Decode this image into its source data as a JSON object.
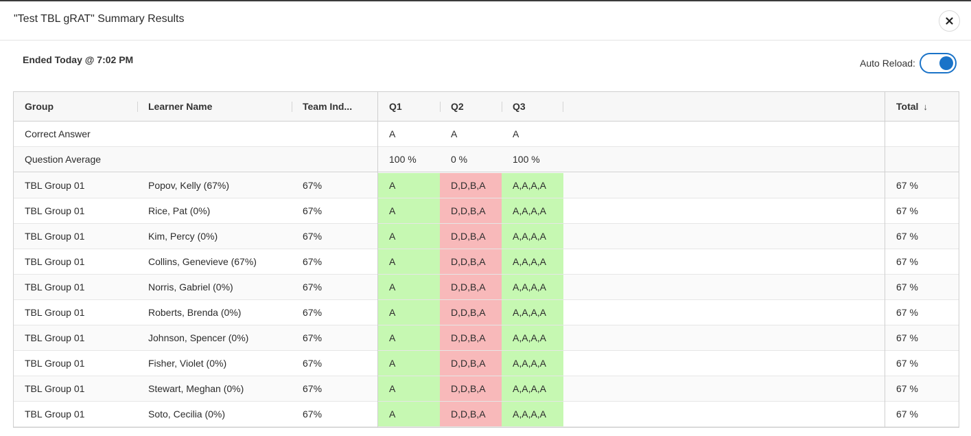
{
  "dialog": {
    "title": "\"Test TBL gRAT\" Summary Results",
    "ended_label": "Ended Today @ 7:02 PM",
    "auto_reload_label": "Auto Reload:",
    "auto_reload_on": true
  },
  "colors": {
    "accent": "#1a73c8",
    "correct": "#c6f8b2",
    "incorrect": "#f8b9ba"
  },
  "grid": {
    "columns": {
      "group": "Group",
      "learner": "Learner Name",
      "team": "Team Ind...",
      "q1": "Q1",
      "q2": "Q2",
      "q3": "Q3",
      "total": "Total",
      "total_sort": "↓"
    },
    "correct_answer": {
      "label": "Correct Answer",
      "q1": "A",
      "q2": "A",
      "q3": "A"
    },
    "question_average": {
      "label": "Question Average",
      "q1": "100 %",
      "q2": "0 %",
      "q3": "100 %"
    },
    "rows": [
      {
        "group": "TBL Group 01",
        "learner": "Popov, Kelly (67%)",
        "team": "67%",
        "q1": "A",
        "q2": "D,D,B,A",
        "q3": "A,A,A,A",
        "total": "67 %"
      },
      {
        "group": "TBL Group 01",
        "learner": "Rice, Pat (0%)",
        "team": "67%",
        "q1": "A",
        "q2": "D,D,B,A",
        "q3": "A,A,A,A",
        "total": "67 %"
      },
      {
        "group": "TBL Group 01",
        "learner": "Kim, Percy (0%)",
        "team": "67%",
        "q1": "A",
        "q2": "D,D,B,A",
        "q3": "A,A,A,A",
        "total": "67 %"
      },
      {
        "group": "TBL Group 01",
        "learner": "Collins, Genevieve (67%)",
        "team": "67%",
        "q1": "A",
        "q2": "D,D,B,A",
        "q3": "A,A,A,A",
        "total": "67 %"
      },
      {
        "group": "TBL Group 01",
        "learner": "Norris, Gabriel (0%)",
        "team": "67%",
        "q1": "A",
        "q2": "D,D,B,A",
        "q3": "A,A,A,A",
        "total": "67 %"
      },
      {
        "group": "TBL Group 01",
        "learner": "Roberts, Brenda (0%)",
        "team": "67%",
        "q1": "A",
        "q2": "D,D,B,A",
        "q3": "A,A,A,A",
        "total": "67 %"
      },
      {
        "group": "TBL Group 01",
        "learner": "Johnson, Spencer (0%)",
        "team": "67%",
        "q1": "A",
        "q2": "D,D,B,A",
        "q3": "A,A,A,A",
        "total": "67 %"
      },
      {
        "group": "TBL Group 01",
        "learner": "Fisher, Violet (0%)",
        "team": "67%",
        "q1": "A",
        "q2": "D,D,B,A",
        "q3": "A,A,A,A",
        "total": "67 %"
      },
      {
        "group": "TBL Group 01",
        "learner": "Stewart, Meghan (0%)",
        "team": "67%",
        "q1": "A",
        "q2": "D,D,B,A",
        "q3": "A,A,A,A",
        "total": "67 %"
      },
      {
        "group": "TBL Group 01",
        "learner": "Soto, Cecilia (0%)",
        "team": "67%",
        "q1": "A",
        "q2": "D,D,B,A",
        "q3": "A,A,A,A",
        "total": "67 %"
      }
    ]
  }
}
